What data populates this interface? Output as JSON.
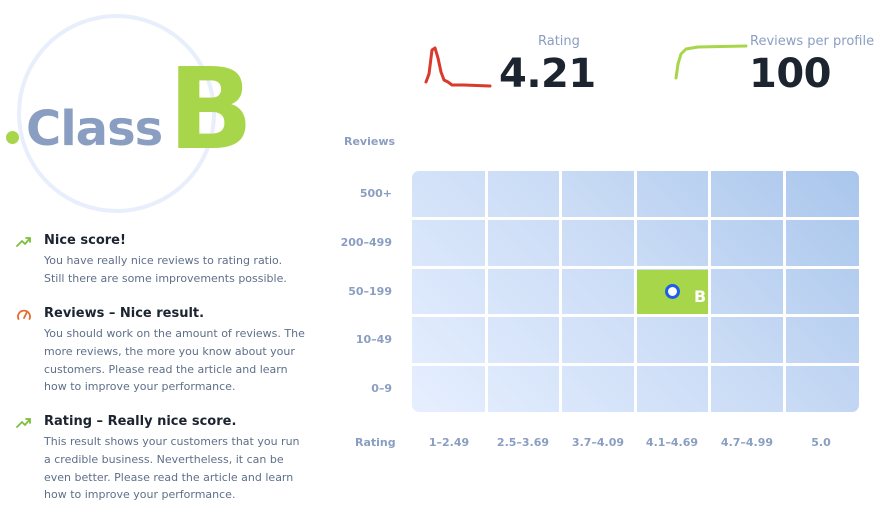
{
  "class_badge": {
    "prefix": "Class",
    "grade": "B"
  },
  "metrics": {
    "rating": {
      "label": "Rating",
      "value": "4.21",
      "spark_color": "#d93a2b"
    },
    "reviews_per_profile": {
      "label": "Reviews per profile",
      "value": "100",
      "spark_color": "#a8d64a"
    }
  },
  "insights": [
    {
      "icon": "trend-up-icon",
      "icon_color": "#7fbf3f",
      "title": "Nice score!",
      "description": "You have really nice reviews to rating ratio. Still there are some improvements possible."
    },
    {
      "icon": "gauge-icon",
      "icon_color": "#e46a2b",
      "title": "Reviews – Nice result.",
      "description": "You should work on the amount of reviews. The more reviews, the more you know about your customers. Please read the article and learn how to improve your performance."
    },
    {
      "icon": "trend-up-icon",
      "icon_color": "#7fbf3f",
      "title": "Rating – Really nice score.",
      "description": "This result shows your customers that you run a credible business. Nevertheless, it can be even better. Please read the article and learn how to improve your performance."
    }
  ],
  "matrix": {
    "y_axis_title": "Reviews",
    "x_axis_title": "Rating",
    "rows": [
      "500+",
      "200–499",
      "50–199",
      "10–49",
      "0–9"
    ],
    "columns": [
      "1–2.49",
      "2.5–3.69",
      "3.7–4.09",
      "4.1–4.69",
      "4.7–4.99",
      "5.0"
    ],
    "active_row": "50–199",
    "active_column": "4.1–4.69",
    "active_grade": "B",
    "active_color": "#a8d64a",
    "marker_color": "#1f5fe8"
  }
}
